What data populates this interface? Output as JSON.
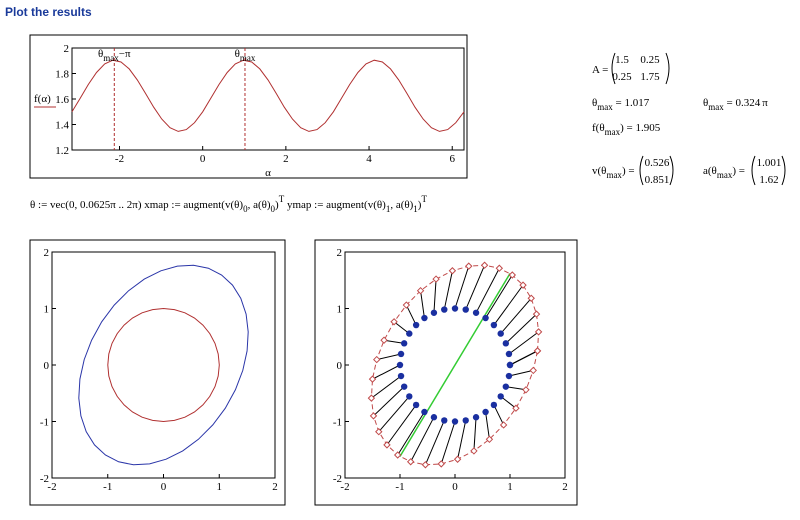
{
  "header": {
    "title": "Plot the results"
  },
  "formula": [
    {
      "t": "θ := vec(0, 0.0625π .. 2π)      xmap := augment(v(θ)"
    },
    {
      "t": "0",
      "s": "sub"
    },
    {
      "t": ", a(θ)"
    },
    {
      "t": "0",
      "s": "sub"
    },
    {
      "t": ")"
    },
    {
      "t": "T",
      "s": "sup"
    },
    {
      "t": "      ymap := augment(v(θ)"
    },
    {
      "t": "1",
      "s": "sub"
    },
    {
      "t": ", a(θ)"
    },
    {
      "t": "1",
      "s": "sub"
    },
    {
      "t": ")"
    },
    {
      "t": "T",
      "s": "sup"
    }
  ],
  "results": {
    "A": {
      "label": [
        {
          "t": "A ="
        }
      ],
      "rows": [
        [
          1.5,
          0.25
        ],
        [
          0.25,
          1.75
        ]
      ]
    },
    "theta_max": {
      "label": [
        {
          "t": "θ"
        },
        {
          "t": "max",
          "s": "sub"
        },
        {
          "t": " = "
        }
      ],
      "value": 1.017
    },
    "theta_max_pi": {
      "label": [
        {
          "t": "θ"
        },
        {
          "t": "max",
          "s": "sub"
        },
        {
          "t": " = "
        }
      ],
      "value": 0.324,
      "unit": "π"
    },
    "f_max": {
      "label": [
        {
          "t": "f(θ"
        },
        {
          "t": "max",
          "s": "sub"
        },
        {
          "t": ") = "
        }
      ],
      "value": 1.905
    },
    "v_max": {
      "label": [
        {
          "t": "v(θ"
        },
        {
          "t": "max",
          "s": "sub"
        },
        {
          "t": ") ="
        }
      ],
      "values": [
        0.526,
        0.851
      ]
    },
    "a_max": {
      "label": [
        {
          "t": "a(θ"
        },
        {
          "t": "max",
          "s": "sub"
        },
        {
          "t": ") ="
        }
      ],
      "values": [
        1.001,
        1.62
      ]
    }
  },
  "mapping": {
    "circle": {
      "x": [
        1,
        0.981,
        0.924,
        0.831,
        0.707,
        0.556,
        0.383,
        0.195,
        0,
        -0.195,
        -0.383,
        -0.556,
        -0.707,
        -0.831,
        -0.924,
        -0.981,
        -1,
        -0.981,
        -0.924,
        -0.831,
        -0.707,
        -0.556,
        -0.383,
        -0.195,
        0,
        0.195,
        0.383,
        0.556,
        0.707,
        0.831,
        0.924,
        0.981,
        1
      ],
      "y": [
        0,
        0.195,
        0.383,
        0.556,
        0.707,
        0.831,
        0.924,
        0.981,
        1,
        0.981,
        0.924,
        0.831,
        0.707,
        0.556,
        0.383,
        0.195,
        0,
        -0.195,
        -0.383,
        -0.556,
        -0.707,
        -0.831,
        -0.924,
        -0.981,
        -1,
        -0.981,
        -0.924,
        -0.831,
        -0.707,
        -0.556,
        -0.383,
        -0.195,
        0
      ]
    },
    "ellipse": {
      "x": [
        1.5,
        1.52,
        1.482,
        1.386,
        1.237,
        1.042,
        0.806,
        0.538,
        0.25,
        -0.047,
        -0.344,
        -0.626,
        -0.884,
        -1.108,
        -1.29,
        -1.423,
        -1.5,
        -1.52,
        -1.482,
        -1.386,
        -1.237,
        -1.042,
        -0.806,
        -0.538,
        -0.25,
        0.047,
        0.344,
        0.626,
        0.884,
        1.108,
        1.29,
        1.423,
        1.5
      ],
      "y": [
        0.25,
        0.586,
        0.901,
        1.181,
        1.414,
        1.593,
        1.713,
        1.766,
        1.75,
        1.668,
        1.521,
        1.315,
        1.061,
        0.765,
        0.439,
        0.096,
        -0.25,
        -0.586,
        -0.901,
        -1.181,
        -1.414,
        -1.593,
        -1.713,
        -1.766,
        -1.75,
        -1.668,
        -1.521,
        -1.315,
        -1.061,
        -0.765,
        -0.439,
        -0.096,
        0.25
      ]
    }
  },
  "plots": [
    {
      "type": "line",
      "color": "#b03030",
      "xlabel": "α",
      "ylabel": "f(α)",
      "x": [
        -3.142,
        -2.945,
        -2.749,
        -2.553,
        -2.356,
        -2.16,
        -1.963,
        -1.767,
        -1.571,
        -1.374,
        -1.178,
        -0.982,
        -0.785,
        -0.589,
        -0.393,
        -0.196,
        0,
        0.196,
        0.393,
        0.589,
        0.785,
        0.982,
        1.178,
        1.374,
        1.571,
        1.767,
        1.963,
        2.16,
        2.356,
        2.553,
        2.749,
        2.945,
        3.142,
        3.338,
        3.534,
        3.731,
        3.927,
        4.123,
        4.32,
        4.516,
        4.712,
        4.909,
        5.105,
        5.301,
        5.498,
        5.694,
        5.89,
        6.087,
        6.283
      ],
      "values": [
        1.5,
        1.606,
        1.714,
        1.808,
        1.875,
        1.904,
        1.89,
        1.836,
        1.75,
        1.644,
        1.536,
        1.442,
        1.375,
        1.346,
        1.36,
        1.414,
        1.5,
        1.606,
        1.714,
        1.808,
        1.875,
        1.904,
        1.89,
        1.836,
        1.75,
        1.644,
        1.536,
        1.442,
        1.375,
        1.346,
        1.36,
        1.414,
        1.5,
        1.606,
        1.714,
        1.808,
        1.875,
        1.904,
        1.89,
        1.836,
        1.75,
        1.644,
        1.536,
        1.442,
        1.375,
        1.346,
        1.36,
        1.414,
        1.5
      ],
      "xlim": [
        -3.142,
        6.283
      ],
      "ylim": [
        1.2,
        2
      ],
      "xticks": [
        -2,
        0,
        2,
        4,
        6
      ],
      "yticks": [
        1.2,
        1.4,
        1.6,
        1.8,
        2
      ],
      "markers": [
        {
          "x": -2.125,
          "label": [
            {
              "t": "θ"
            },
            {
              "t": "max",
              "s": "sub"
            },
            {
              "t": "−π"
            }
          ]
        },
        {
          "x": 1.017,
          "label": [
            {
              "t": "θ"
            },
            {
              "t": "max",
              "s": "sub"
            }
          ]
        }
      ]
    },
    {
      "type": "curves",
      "circle_color": "#b03030",
      "ellipse_color": "#2a35a8",
      "xlim": [
        -2,
        2
      ],
      "ylim": [
        -2,
        2
      ],
      "xticks": [
        -2,
        -1,
        0,
        1,
        2
      ],
      "yticks": [
        -2,
        -1,
        0,
        1,
        2
      ]
    },
    {
      "type": "scatter",
      "point_color": "#1a2fa0",
      "mapped_color": "#c04a4a",
      "segment_color": "#000000",
      "axis_color": "#33cc33",
      "xlim": [
        -2,
        2
      ],
      "ylim": [
        -2,
        2
      ],
      "xticks": [
        -2,
        -1,
        0,
        1,
        2
      ],
      "yticks": [
        -2,
        -1,
        0,
        1,
        2
      ]
    }
  ]
}
